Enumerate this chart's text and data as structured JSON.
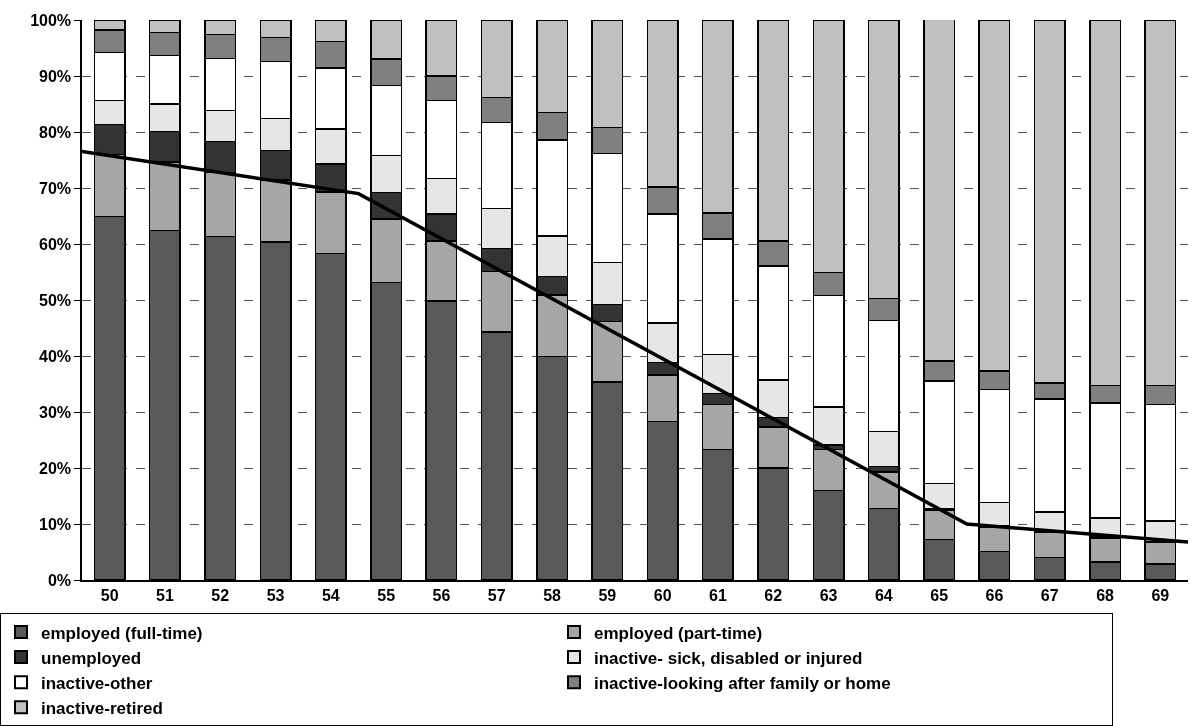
{
  "chart_data": {
    "type": "bar",
    "stacked": true,
    "x": [
      50,
      51,
      52,
      53,
      54,
      55,
      56,
      57,
      58,
      59,
      60,
      61,
      62,
      63,
      64,
      65,
      66,
      67,
      68,
      69
    ],
    "xlim": [
      49.5,
      69.5
    ],
    "xticks": [
      50,
      51,
      52,
      53,
      54,
      55,
      56,
      57,
      58,
      59,
      60,
      61,
      62,
      63,
      64,
      65,
      66,
      67,
      68,
      69
    ],
    "ylim": [
      0,
      100
    ],
    "yticks": [
      {
        "value": 0,
        "label": "0%"
      },
      {
        "value": 10,
        "label": "10%"
      },
      {
        "value": 20,
        "label": "20%"
      },
      {
        "value": 30,
        "label": "30%"
      },
      {
        "value": 40,
        "label": "40%"
      },
      {
        "value": 50,
        "label": "50%"
      },
      {
        "value": 60,
        "label": "60%"
      },
      {
        "value": 70,
        "label": "70%"
      },
      {
        "value": 80,
        "label": "80%"
      },
      {
        "value": 90,
        "label": "90%"
      },
      {
        "value": 100,
        "label": "100%"
      }
    ],
    "grid": "y",
    "legend": "bottom",
    "series": [
      {
        "name": "employed (full-time)",
        "color": "#595959",
        "values": [
          64.9,
          62.4,
          61.3,
          60.4,
          58.3,
          53.1,
          49.8,
          44.3,
          39.9,
          35.4,
          28.3,
          23.3,
          20.0,
          16.0,
          12.8,
          7.2,
          5.1,
          4.0,
          3.2,
          2.9
        ]
      },
      {
        "name": "employed (part-time)",
        "color": "#a6a6a6",
        "values": [
          11.1,
          12.2,
          11.5,
          11.0,
          11.0,
          11.4,
          10.7,
          10.8,
          11.0,
          10.8,
          8.3,
          8.0,
          7.3,
          7.3,
          6.5,
          5.3,
          4.4,
          4.5,
          4.3,
          3.8
        ]
      },
      {
        "name": "unemployed",
        "color": "#333333",
        "values": [
          5.3,
          5.5,
          5.5,
          5.3,
          5.0,
          4.7,
          4.9,
          4.1,
          3.3,
          3.0,
          2.2,
          2.0,
          1.7,
          0.8,
          1.0,
          0.2,
          0.2,
          0.2,
          0.2,
          0.2
        ]
      },
      {
        "name": "inactive- sick, disabled or injured",
        "color": "#e6e6e6",
        "values": [
          4.3,
          4.9,
          5.5,
          5.7,
          6.2,
          6.6,
          6.3,
          7.1,
          7.2,
          7.5,
          7.1,
          7.0,
          6.7,
          6.8,
          6.2,
          4.5,
          4.1,
          3.4,
          3.4,
          3.6
        ]
      },
      {
        "name": "inactive-other",
        "color": "#ffffff",
        "values": [
          8.6,
          8.7,
          9.3,
          10.2,
          10.9,
          12.5,
          13.9,
          15.4,
          17.2,
          19.5,
          19.5,
          20.6,
          20.4,
          19.9,
          19.8,
          18.3,
          20.2,
          20.2,
          20.5,
          20.8
        ]
      },
      {
        "name": "inactive-looking after family or home",
        "color": "#808080",
        "values": [
          4.0,
          4.1,
          4.3,
          4.3,
          4.8,
          4.7,
          4.4,
          4.5,
          4.9,
          4.6,
          4.8,
          4.6,
          4.4,
          4.1,
          4.0,
          3.6,
          3.3,
          2.9,
          3.1,
          3.4
        ]
      },
      {
        "name": "inactive-retired",
        "color": "#c0c0c0",
        "values": [
          1.8,
          2.2,
          2.6,
          3.1,
          3.8,
          7.0,
          10.0,
          13.8,
          16.5,
          19.2,
          29.8,
          34.5,
          39.5,
          45.0,
          49.7,
          61.1,
          62.7,
          64.8,
          65.3,
          65.3
        ]
      },
      {
        "type": "line",
        "color": "#000000",
        "marker": "none",
        "line_style": "solid",
        "x": [
          49.5,
          54.5,
          65.5,
          69.5
        ],
        "values": [
          76.5,
          69.0,
          10.0,
          6.8
        ]
      }
    ]
  }
}
